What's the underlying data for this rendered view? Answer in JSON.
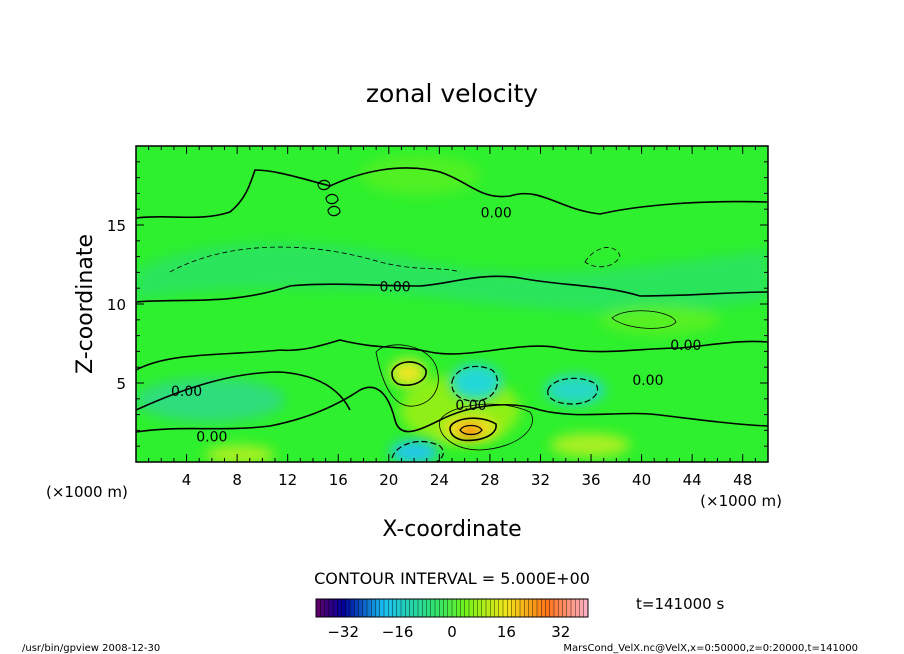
{
  "chart_data": {
    "type": "heatmap",
    "title": "zonal velocity",
    "xlabel": "X-coordinate",
    "ylabel": "Z-coordinate",
    "x_unit_left": "(×1000 m)",
    "x_unit_right": "(×1000 m)",
    "xlim": [
      0,
      50
    ],
    "ylim": [
      0,
      20
    ],
    "x_ticks": [
      4,
      8,
      12,
      16,
      20,
      24,
      28,
      32,
      36,
      40,
      44,
      48
    ],
    "y_ticks": [
      5,
      10,
      15
    ],
    "contour_interval_text": "CONTOUR INTERVAL = 5.000E+00",
    "time_text": "t=141000 s",
    "contour_labels": [
      {
        "text": "0.00",
        "x": 28.5,
        "z": 15.8
      },
      {
        "text": "0.00",
        "x": 20.5,
        "z": 11.1
      },
      {
        "text": "0.00",
        "x": 43.5,
        "z": 7.4
      },
      {
        "text": "0.00",
        "x": 40.5,
        "z": 5.2
      },
      {
        "text": "0.00",
        "x": 26.5,
        "z": 3.6
      },
      {
        "text": "0.00",
        "x": 4.0,
        "z": 4.5
      },
      {
        "text": "0.00",
        "x": 6.0,
        "z": 1.6
      }
    ],
    "features": [
      {
        "kind": "max",
        "x": 21.5,
        "z": 5.5,
        "value": 10
      },
      {
        "kind": "max",
        "x": 26.5,
        "z": 2.0,
        "value": 20
      },
      {
        "kind": "min",
        "x": 27.0,
        "z": 4.9,
        "value": -10
      },
      {
        "kind": "min",
        "x": 34.5,
        "z": 4.5,
        "value": -10
      },
      {
        "kind": "min",
        "x": 22.0,
        "z": 0.5,
        "value": -10
      }
    ],
    "colorbar": {
      "range": [
        -40,
        40
      ],
      "ticks": [
        -32,
        -16,
        0,
        16,
        32
      ],
      "tick_labels": [
        "−32",
        "−16",
        "0",
        "16",
        "32"
      ]
    },
    "colors": {
      "background": "#2ef02e",
      "positive": "#f2e820",
      "strong_positive": "#ff6010",
      "negative": "#22d8d8"
    }
  },
  "footer": {
    "left": "/usr/bin/gpview   2008-12-30",
    "right": "MarsCond_VelX.nc@VelX,x=0:50000,z=0:20000,t=141000"
  }
}
